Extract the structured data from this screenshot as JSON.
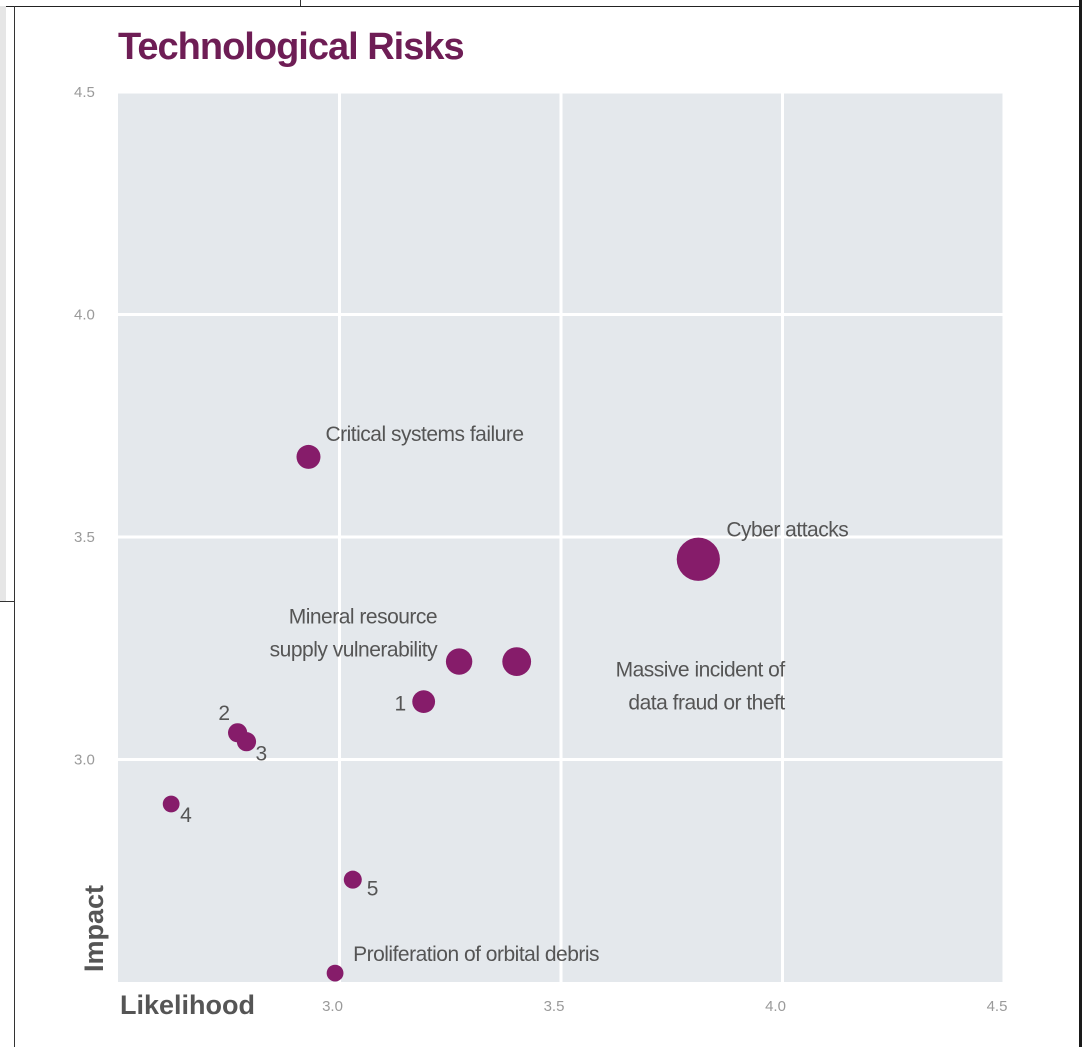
{
  "chart_data": {
    "type": "scatter",
    "title": "Technological Risks",
    "xlabel": "Likelihood",
    "ylabel": "Impact",
    "xlim": [
      2.5,
      4.5
    ],
    "ylim": [
      2.5,
      4.5
    ],
    "x_ticks": [
      "3.0",
      "3.5",
      "4.0",
      "4.5"
    ],
    "y_ticks": [
      "3.0",
      "3.5",
      "4.0",
      "4.5"
    ],
    "grid": true,
    "colors": {
      "point": "#861c6a",
      "plot_bg": "#e4e8ec",
      "grid": "#ffffff",
      "title": "#6e1d55"
    },
    "points": [
      {
        "id": "critical",
        "label_lines": [
          "Critical systems failure"
        ],
        "x": 2.93,
        "y": 3.68,
        "size": 1.0
      },
      {
        "id": "cyber",
        "label_lines": [
          "Cyber attacks"
        ],
        "x": 3.81,
        "y": 3.45,
        "size": 1.8
      },
      {
        "id": "mineral",
        "label_lines": [
          "Mineral resource",
          "supply vulnerability"
        ],
        "x": 3.27,
        "y": 3.22,
        "size": 1.1
      },
      {
        "id": "massive",
        "label_lines": [
          "Massive incident of",
          "data fraud or theft"
        ],
        "x": 3.4,
        "y": 3.22,
        "size": 1.2
      },
      {
        "id": "p1",
        "label_lines": [
          "1"
        ],
        "x": 3.19,
        "y": 3.13,
        "size": 0.95
      },
      {
        "id": "p2",
        "label_lines": [
          "2"
        ],
        "x": 2.77,
        "y": 3.06,
        "size": 0.8
      },
      {
        "id": "p3",
        "label_lines": [
          "3"
        ],
        "x": 2.79,
        "y": 3.04,
        "size": 0.8
      },
      {
        "id": "p4",
        "label_lines": [
          "4"
        ],
        "x": 2.62,
        "y": 2.9,
        "size": 0.7
      },
      {
        "id": "p5",
        "label_lines": [
          "5"
        ],
        "x": 3.03,
        "y": 2.73,
        "size": 0.75
      },
      {
        "id": "debris",
        "label_lines": [
          "Proliferation of orbital debris"
        ],
        "x": 2.99,
        "y": 2.52,
        "size": 0.7
      }
    ]
  }
}
